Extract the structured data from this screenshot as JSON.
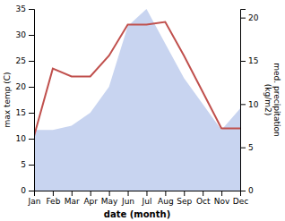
{
  "chart_data": {
    "type": "line",
    "categories": [
      "Jan",
      "Feb",
      "Mar",
      "Apr",
      "May",
      "Jun",
      "Jul",
      "Aug",
      "Sep",
      "Oct",
      "Nov",
      "Dec"
    ],
    "series": [
      {
        "type": "area",
        "axis": "y2",
        "color": "#c8d4f0",
        "values": [
          7.0,
          7.0,
          7.5,
          9.0,
          12.0,
          19.0,
          21.0,
          17.0,
          13.0,
          10.0,
          7.0,
          9.5
        ]
      },
      {
        "type": "line",
        "color": "#c0504d",
        "values": [
          10.5,
          23.5,
          22.0,
          22.0,
          26.0,
          32.0,
          32.0,
          32.5,
          26.0,
          19.0,
          12.0,
          12.0
        ]
      }
    ],
    "xlabel": "date (month)",
    "ylabel": "max temp (C)",
    "y2label": "med. precipitation\n(kg/m2)",
    "ylim": [
      0,
      35
    ],
    "yticks": [
      0,
      5,
      10,
      15,
      20,
      25,
      30,
      35
    ],
    "y2lim": [
      0,
      21
    ],
    "y2ticks": [
      0,
      5,
      10,
      15,
      20
    ],
    "grid": false
  }
}
